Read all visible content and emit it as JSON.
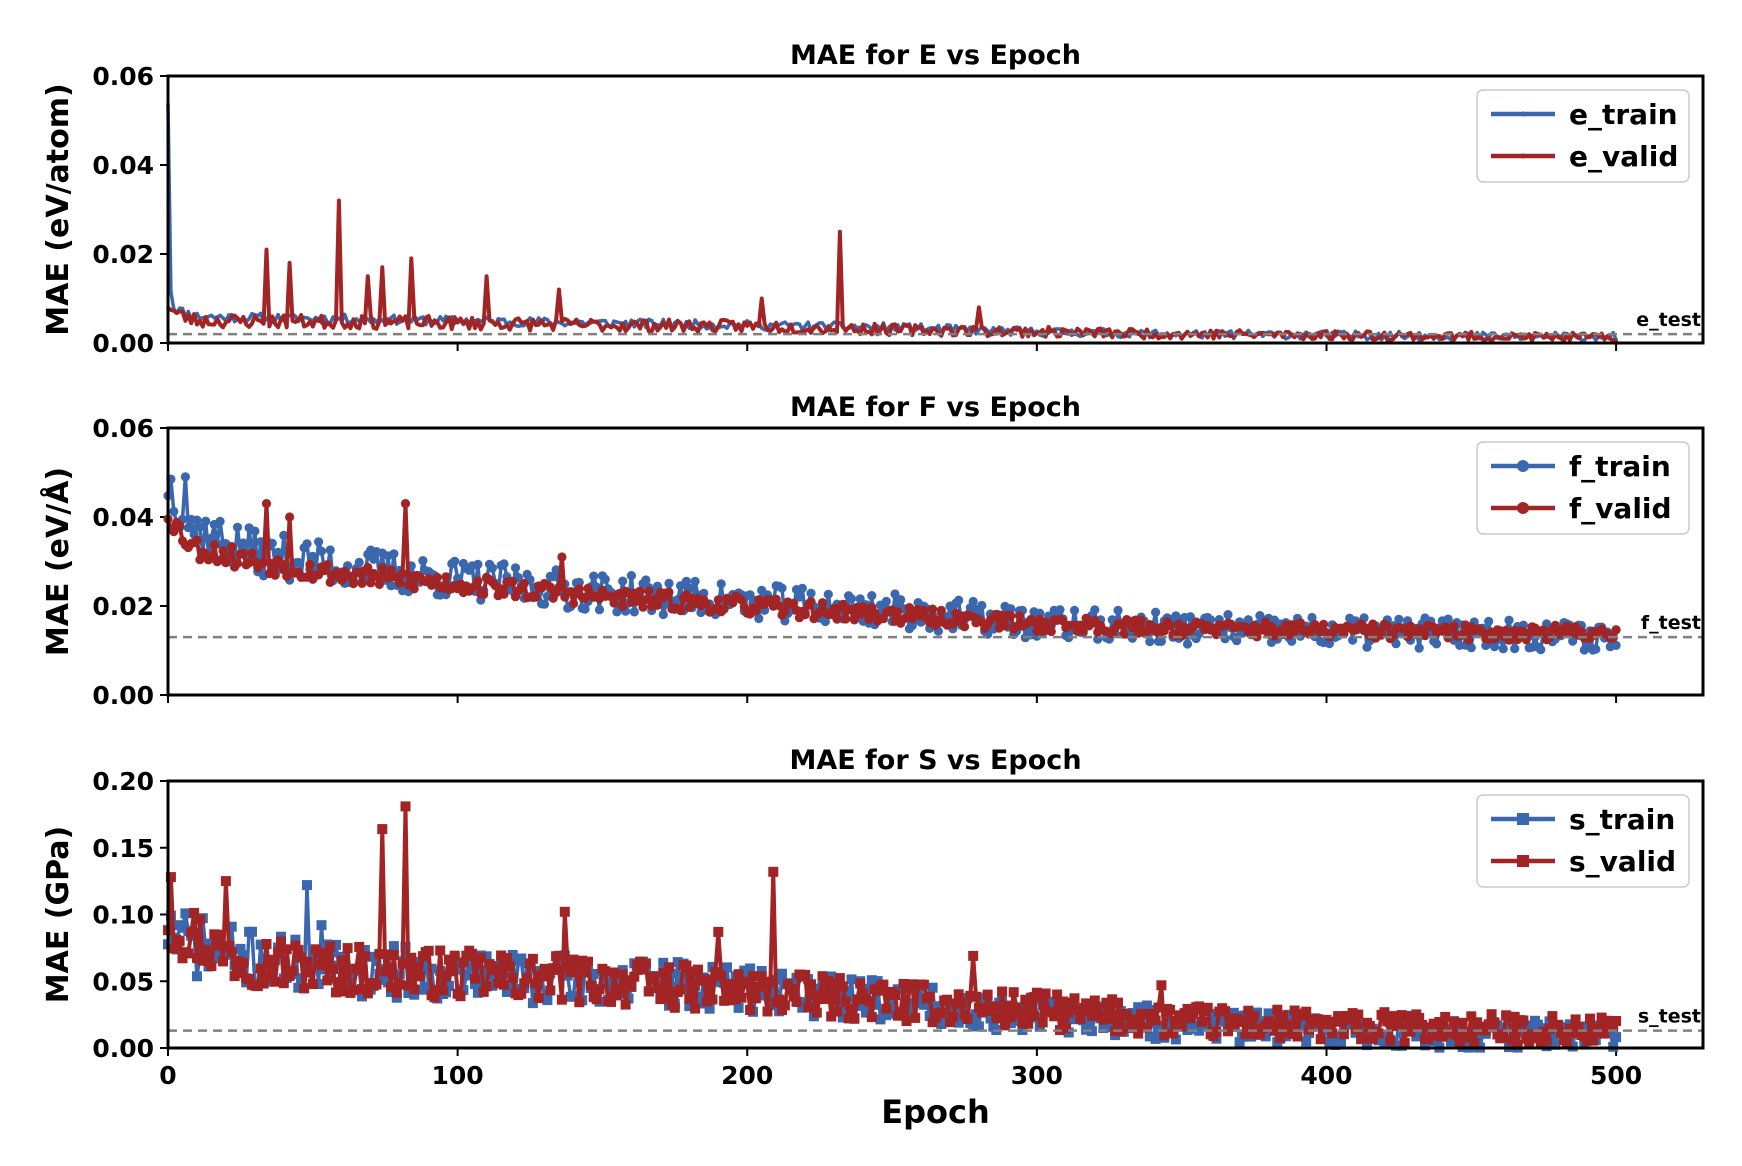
{
  "chart_data": [
    {
      "type": "line",
      "title": "MAE for E vs Epoch",
      "xlabel": "",
      "ylabel": "MAE (eV/atom)",
      "xlim": [
        0,
        530
      ],
      "ylim": [
        0,
        0.06
      ],
      "yticks": [
        "0.00",
        "0.02",
        "0.04",
        "0.06"
      ],
      "yticks_values": [
        0,
        0.02,
        0.04,
        0.06
      ],
      "xticks_values": [
        0,
        100,
        200,
        300,
        400,
        500
      ],
      "show_xtick_labels": false,
      "marker": "point",
      "legend_position": "top-right",
      "reference": {
        "name": "e_test",
        "value": 0.002,
        "color": "#808080"
      },
      "series": [
        {
          "name": "e_train",
          "color": "#3a67ad",
          "anchors_x": [
            0,
            1,
            2,
            5,
            10,
            20,
            50,
            100,
            150,
            200,
            250,
            300,
            350,
            400,
            450,
            500
          ],
          "anchors_y": [
            0.055,
            0.012,
            0.008,
            0.007,
            0.006,
            0.0058,
            0.0055,
            0.005,
            0.0045,
            0.004,
            0.0035,
            0.0025,
            0.002,
            0.0018,
            0.0015,
            0.0015
          ],
          "noise": 0.0025,
          "spikes": [],
          "seed": 11
        },
        {
          "name": "e_valid",
          "color": "#a22424",
          "anchors_x": [
            0,
            2,
            5,
            10,
            50,
            100,
            150,
            200,
            250,
            300,
            350,
            400,
            450,
            500
          ],
          "anchors_y": [
            0.009,
            0.007,
            0.006,
            0.005,
            0.0048,
            0.0045,
            0.004,
            0.0038,
            0.003,
            0.0025,
            0.002,
            0.0018,
            0.0015,
            0.0012
          ],
          "noise": 0.0022,
          "spikes": [
            [
              34,
              0.021
            ],
            [
              42,
              0.018
            ],
            [
              59,
              0.032
            ],
            [
              69,
              0.015
            ],
            [
              74,
              0.017
            ],
            [
              84,
              0.019
            ],
            [
              110,
              0.015
            ],
            [
              135,
              0.012
            ],
            [
              232,
              0.025
            ],
            [
              280,
              0.008
            ],
            [
              205,
              0.01
            ]
          ],
          "seed": 23
        }
      ]
    },
    {
      "type": "line",
      "title": "MAE for F vs Epoch",
      "xlabel": "",
      "ylabel": "MAE (eV/Å)",
      "xlim": [
        0,
        530
      ],
      "ylim": [
        0,
        0.06
      ],
      "yticks": [
        "0.00",
        "0.02",
        "0.04",
        "0.06"
      ],
      "yticks_values": [
        0,
        0.02,
        0.04,
        0.06
      ],
      "xticks_values": [
        0,
        100,
        200,
        300,
        400,
        500
      ],
      "show_xtick_labels": false,
      "marker": "circle",
      "legend_position": "top-right",
      "reference": {
        "name": "f_test",
        "value": 0.013,
        "color": "#808080"
      },
      "series": [
        {
          "name": "f_train",
          "color": "#3a67ad",
          "anchors_x": [
            0,
            5,
            10,
            30,
            60,
            100,
            150,
            200,
            250,
            300,
            350,
            400,
            450,
            500
          ],
          "anchors_y": [
            0.048,
            0.042,
            0.037,
            0.032,
            0.029,
            0.026,
            0.023,
            0.021,
            0.019,
            0.016,
            0.015,
            0.014,
            0.014,
            0.013
          ],
          "noise": 0.0065,
          "spikes": [
            [
              6,
              0.049
            ]
          ],
          "seed": 37
        },
        {
          "name": "f_valid",
          "color": "#a22424",
          "anchors_x": [
            0,
            5,
            10,
            30,
            60,
            100,
            150,
            200,
            250,
            300,
            350,
            400,
            450,
            500
          ],
          "anchors_y": [
            0.041,
            0.036,
            0.033,
            0.03,
            0.027,
            0.025,
            0.022,
            0.02,
            0.018,
            0.016,
            0.015,
            0.0145,
            0.014,
            0.014
          ],
          "noise": 0.003,
          "spikes": [
            [
              34,
              0.043
            ],
            [
              42,
              0.04
            ],
            [
              82,
              0.043
            ],
            [
              136,
              0.031
            ]
          ],
          "seed": 53
        }
      ]
    },
    {
      "type": "line",
      "title": "MAE for S vs Epoch",
      "xlabel": "Epoch",
      "ylabel": "MAE (GPa)",
      "xlim": [
        0,
        530
      ],
      "ylim": [
        0,
        0.2
      ],
      "yticks": [
        "0.00",
        "0.05",
        "0.10",
        "0.15",
        "0.20"
      ],
      "yticks_values": [
        0,
        0.05,
        0.1,
        0.15,
        0.2
      ],
      "xticks": [
        "0",
        "100",
        "200",
        "300",
        "400",
        "500"
      ],
      "xticks_values": [
        0,
        100,
        200,
        300,
        400,
        500
      ],
      "show_xtick_labels": true,
      "marker": "square",
      "legend_position": "top-right",
      "reference": {
        "name": "s_test",
        "value": 0.013,
        "color": "#808080"
      },
      "series": [
        {
          "name": "s_train",
          "color": "#3a67ad",
          "anchors_x": [
            0,
            5,
            20,
            50,
            100,
            150,
            200,
            250,
            300,
            350,
            400,
            450,
            500
          ],
          "anchors_y": [
            0.09,
            0.08,
            0.07,
            0.06,
            0.055,
            0.05,
            0.045,
            0.035,
            0.025,
            0.018,
            0.012,
            0.01,
            0.009
          ],
          "noise": 0.026,
          "spikes": [
            [
              48,
              0.122
            ],
            [
              53,
              0.092
            ]
          ],
          "seed": 71
        },
        {
          "name": "s_valid",
          "color": "#a22424",
          "anchors_x": [
            0,
            5,
            20,
            50,
            100,
            150,
            200,
            250,
            300,
            350,
            400,
            450,
            500
          ],
          "anchors_y": [
            0.1,
            0.09,
            0.07,
            0.06,
            0.055,
            0.05,
            0.042,
            0.035,
            0.028,
            0.02,
            0.016,
            0.014,
            0.013
          ],
          "noise": 0.026,
          "spikes": [
            [
              1,
              0.128
            ],
            [
              20,
              0.125
            ],
            [
              74,
              0.164
            ],
            [
              82,
              0.181
            ],
            [
              209,
              0.132
            ],
            [
              137,
              0.102
            ],
            [
              190,
              0.087
            ],
            [
              278,
              0.069
            ],
            [
              343,
              0.047
            ]
          ],
          "seed": 97
        }
      ]
    }
  ]
}
